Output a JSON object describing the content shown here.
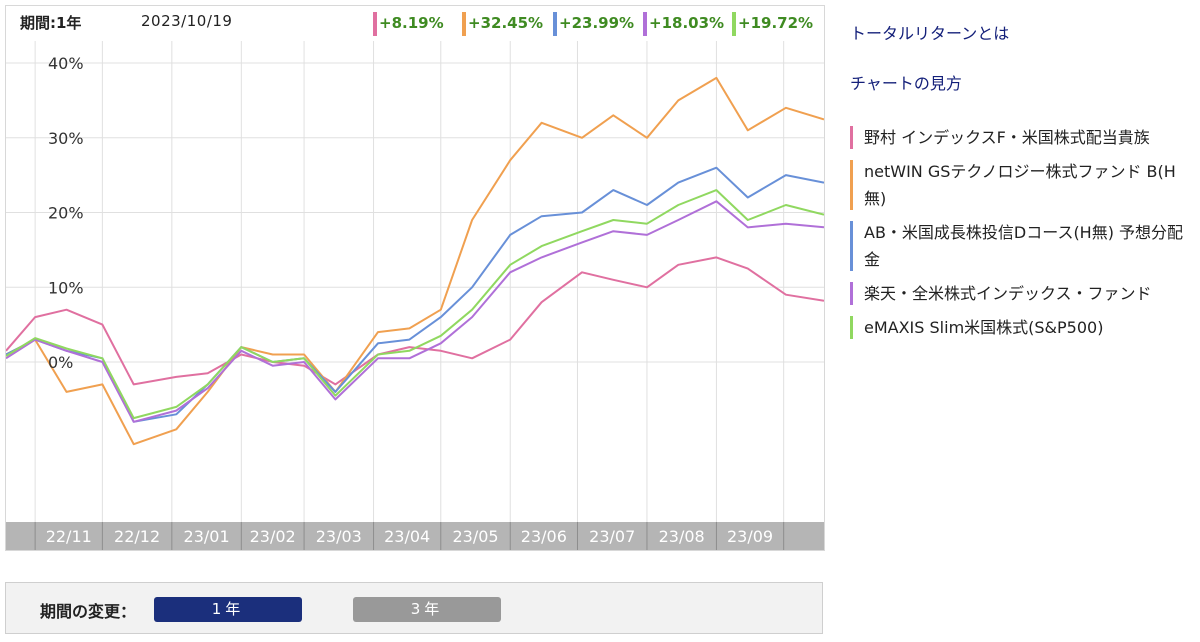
{
  "header": {
    "period_label": "期間:1年",
    "date": "2023/10/19",
    "returns": [
      {
        "value": "+8.19%",
        "color": "#e070a0"
      },
      {
        "value": "+32.45%",
        "color": "#f0a050"
      },
      {
        "value": "+23.99%",
        "color": "#6890d8"
      },
      {
        "value": "+18.03%",
        "color": "#b070d8"
      },
      {
        "value": "+19.72%",
        "color": "#90d860"
      }
    ]
  },
  "links": {
    "total_return": "トータルリターンとは",
    "how_to_read": "チャートの見方"
  },
  "legend": [
    {
      "label": "野村 インデックスF・米国株式配当貴族",
      "color": "#e070a0"
    },
    {
      "label": "netWIN GSテクノロジー株式ファンド B(H無)",
      "color": "#f0a050"
    },
    {
      "label": "AB・米国成長株投信Dコース(H無) 予想分配金",
      "color": "#6890d8"
    },
    {
      "label": "楽天・全米株式インデックス・ファンド",
      "color": "#b070d8"
    },
    {
      "label": "eMAXIS Slim米国株式(S&P500)",
      "color": "#90d860"
    }
  ],
  "period_panel": {
    "label": "期間の変更：",
    "btn_1y": "1年",
    "btn_3y": "3年"
  },
  "chart_data": {
    "type": "line",
    "ylim": [
      -20,
      40
    ],
    "yticks": [
      "40%",
      "30%",
      "20%",
      "10%",
      "0%"
    ],
    "ytick_values": [
      40,
      30,
      20,
      10,
      0
    ],
    "grid": true,
    "x_tick_labels": [
      "22/11",
      "22/12",
      "23/01",
      "23/02",
      "23/03",
      "23/04",
      "23/05",
      "23/06",
      "23/07",
      "23/08",
      "23/09"
    ],
    "x": [
      "2022-10-19",
      "2022-11-01",
      "2022-11-15",
      "2022-12-01",
      "2022-12-15",
      "2023-01-03",
      "2023-01-17",
      "2023-02-01",
      "2023-02-15",
      "2023-03-01",
      "2023-03-15",
      "2023-04-03",
      "2023-04-17",
      "2023-05-01",
      "2023-05-15",
      "2023-06-01",
      "2023-06-15",
      "2023-07-03",
      "2023-07-17",
      "2023-08-01",
      "2023-08-15",
      "2023-09-01",
      "2023-09-15",
      "2023-10-02",
      "2023-10-19"
    ],
    "series": [
      {
        "name": "野村 インデックスF・米国株式配当貴族",
        "color": "#e070a0",
        "values": [
          1.5,
          6.0,
          7.0,
          5.0,
          -3.0,
          -2.0,
          -1.5,
          1.0,
          0.0,
          -0.5,
          -3.0,
          1.0,
          2.0,
          1.5,
          0.5,
          3.0,
          8.0,
          12.0,
          11.0,
          10.0,
          13.0,
          14.0,
          12.5,
          9.0,
          8.19
        ]
      },
      {
        "name": "netWIN GSテクノロジー株式ファンド B(H無)",
        "color": "#f0a050",
        "values": [
          1.0,
          3.0,
          -4.0,
          -3.0,
          -11.0,
          -9.0,
          -4.0,
          2.0,
          1.0,
          1.0,
          -4.0,
          4.0,
          4.5,
          7.0,
          19.0,
          27.0,
          32.0,
          30.0,
          33.0,
          30.0,
          35.0,
          38.0,
          31.0,
          34.0,
          32.45
        ]
      },
      {
        "name": "AB・米国成長株投信Dコース(H無) 予想分配金",
        "color": "#6890d8",
        "values": [
          1.0,
          3.0,
          1.5,
          0.5,
          -8.0,
          -7.0,
          -3.0,
          2.0,
          0.0,
          0.5,
          -4.0,
          2.5,
          3.0,
          6.0,
          10.0,
          17.0,
          19.5,
          20.0,
          23.0,
          21.0,
          24.0,
          26.0,
          22.0,
          25.0,
          23.99
        ]
      },
      {
        "name": "楽天・全米株式インデックス・ファンド",
        "color": "#b070d8",
        "values": [
          0.5,
          3.0,
          1.5,
          0.0,
          -8.0,
          -6.5,
          -3.5,
          1.5,
          -0.5,
          0.0,
          -5.0,
          0.5,
          0.5,
          2.5,
          6.0,
          12.0,
          14.0,
          16.0,
          17.5,
          17.0,
          19.0,
          21.5,
          18.0,
          18.5,
          18.03
        ]
      },
      {
        "name": "eMAXIS Slim米国株式(S&P500)",
        "color": "#90d860",
        "values": [
          0.8,
          3.2,
          1.8,
          0.5,
          -7.5,
          -6.0,
          -3.0,
          2.0,
          0.0,
          0.5,
          -4.5,
          1.0,
          1.5,
          3.5,
          7.0,
          13.0,
          15.5,
          17.5,
          19.0,
          18.5,
          21.0,
          23.0,
          19.0,
          21.0,
          19.72
        ]
      }
    ]
  }
}
